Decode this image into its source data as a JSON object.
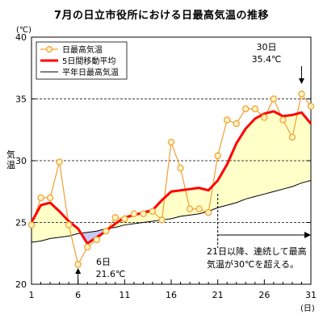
{
  "chart_data": {
    "type": "line",
    "title": "7月の日立市役所における日最高気温の推移",
    "ylabel": "気温",
    "yunit": "(℃)",
    "xunit": "(日)",
    "xlim": [
      1,
      31
    ],
    "ylim": [
      20,
      40
    ],
    "x_ticks": [
      1,
      6,
      11,
      16,
      21,
      26,
      31
    ],
    "y_ticks": [
      20,
      25,
      30,
      35,
      40
    ],
    "grid": "dashed horizontal lines at 25, 30, 35",
    "legend_position": "top-left",
    "x": [
      1,
      2,
      3,
      4,
      5,
      6,
      7,
      8,
      9,
      10,
      11,
      12,
      13,
      14,
      15,
      16,
      17,
      18,
      19,
      20,
      21,
      22,
      23,
      24,
      25,
      26,
      27,
      28,
      29,
      30,
      31
    ],
    "series": [
      {
        "name": "日最高気温",
        "color": "#f0a030",
        "marker_fill": "#fff3c0",
        "values": [
          24.8,
          27.0,
          27.0,
          29.9,
          24.8,
          21.6,
          23.0,
          23.6,
          24.3,
          25.4,
          25.3,
          25.7,
          25.7,
          25.9,
          25.2,
          31.5,
          29.4,
          26.1,
          26.1,
          25.8,
          30.4,
          33.3,
          33.0,
          34.2,
          34.2,
          33.5,
          35.0,
          33.3,
          31.9,
          35.4,
          34.4
        ]
      },
      {
        "name": "5日間移動平均",
        "color": "#ff0000",
        "values": [
          25.0,
          26.4,
          26.6,
          25.9,
          25.1,
          24.5,
          23.3,
          23.8,
          24.3,
          24.9,
          25.4,
          25.6,
          25.8,
          26.0,
          26.8,
          27.5,
          27.6,
          27.7,
          27.8,
          27.6,
          28.4,
          29.7,
          31.4,
          32.6,
          33.4,
          33.8,
          34.0,
          33.6,
          33.7,
          33.9,
          33.0
        ]
      },
      {
        "name": "平年日最高気温",
        "color": "#000000",
        "values": [
          23.4,
          23.5,
          23.7,
          23.8,
          23.9,
          24.1,
          24.2,
          24.3,
          24.5,
          24.6,
          24.8,
          24.9,
          25.0,
          25.1,
          25.2,
          25.3,
          25.5,
          25.6,
          25.7,
          25.9,
          26.2,
          26.4,
          26.6,
          26.9,
          27.1,
          27.3,
          27.5,
          27.7,
          27.9,
          28.2,
          28.4
        ]
      }
    ],
    "fills": [
      {
        "description_color": "#ffffc8",
        "when": "5日間移動平均 above 平年"
      },
      {
        "description_color": "#c8c8f5",
        "when": "5日間移動平均 below 平年"
      }
    ],
    "annotations": [
      {
        "id": "day30",
        "line1": "30日",
        "line2": "35.4℃",
        "x": 30,
        "y": 35.4
      },
      {
        "id": "day6",
        "line1": "6日",
        "line2": "21.6℃",
        "x": 6,
        "y": 21.6
      },
      {
        "id": "day21",
        "line1": "21日以降、連続して最高",
        "line2": "気温が30℃を超える。",
        "x_from": 21,
        "x_to": 31
      }
    ]
  }
}
